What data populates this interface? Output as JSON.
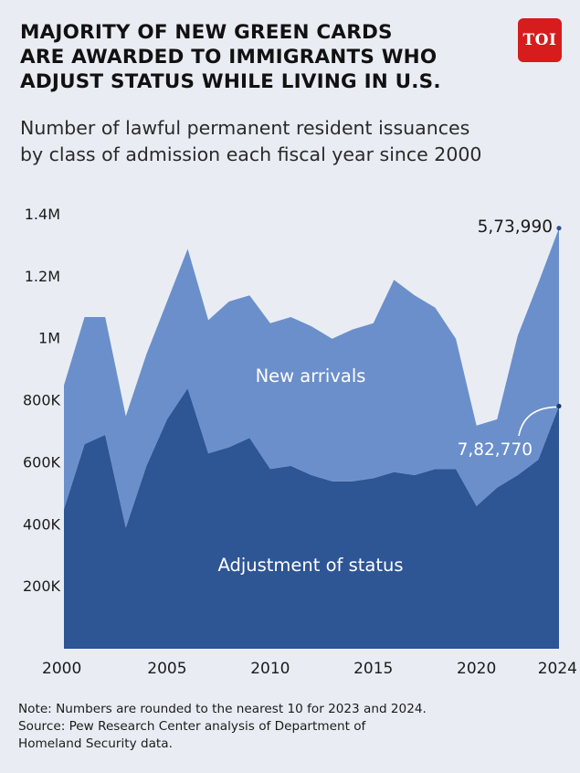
{
  "title_lines": [
    "MAJORITY OF NEW GREEN CARDS",
    "ARE AWARDED TO IMMIGRANTS WHO",
    "ADJUST STATUS WHILE LIVING IN U.S."
  ],
  "subtitle_lines": [
    "Number of lawful permanent resident issuances",
    "by class of admission each fiscal year since 2000"
  ],
  "logo_text": "TOI",
  "note_lines": [
    "Note: Numbers are rounded to the nearest 10 for 2023 and 2024.",
    "Source: Pew Research Center analysis of Department of",
    "Homeland Security data."
  ],
  "colors": {
    "background": "#e9edf3",
    "adjustment_of_status": "#2e5594",
    "new_arrivals": "#6b8fcb",
    "logo": "#d61c1c"
  },
  "chart_data": {
    "type": "area",
    "stacked": true,
    "x": [
      2000,
      2001,
      2002,
      2003,
      2004,
      2005,
      2006,
      2007,
      2008,
      2009,
      2010,
      2011,
      2012,
      2013,
      2014,
      2015,
      2016,
      2017,
      2018,
      2019,
      2020,
      2021,
      2022,
      2023,
      2024
    ],
    "series": [
      {
        "name": "Adjustment of status",
        "values": [
          450000,
          660000,
          690000,
          390000,
          590000,
          740000,
          840000,
          630000,
          650000,
          680000,
          580000,
          590000,
          560000,
          540000,
          540000,
          550000,
          570000,
          560000,
          580000,
          580000,
          460000,
          520000,
          560000,
          610000,
          782770
        ]
      },
      {
        "name": "New arrivals",
        "values": [
          400000,
          410000,
          380000,
          360000,
          360000,
          380000,
          450000,
          430000,
          470000,
          460000,
          470000,
          480000,
          480000,
          460000,
          490000,
          500000,
          620000,
          580000,
          520000,
          420000,
          260000,
          220000,
          450000,
          570000,
          573990
        ]
      }
    ],
    "xticks": [
      "2000",
      "2005",
      "2010",
      "2015",
      "2020",
      "2024"
    ],
    "yticks": [
      "200K",
      "400K",
      "600K",
      "800K",
      "1M",
      "1.2M",
      "1.4M"
    ],
    "ylim": [
      0,
      1400000
    ],
    "area_labels": [
      "New arrivals",
      "Adjustment of status"
    ],
    "annotations": [
      {
        "series": "New arrivals",
        "year": 2024,
        "text": "5,73,990"
      },
      {
        "series": "Adjustment of status",
        "year": 2024,
        "text": "7,82,770"
      }
    ]
  }
}
